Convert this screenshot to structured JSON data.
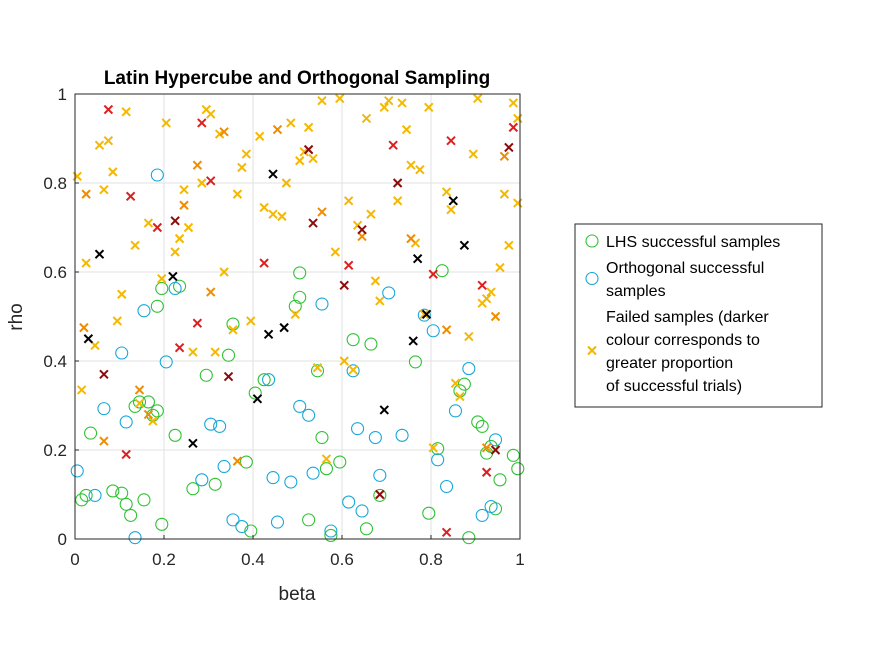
{
  "chart_data": {
    "type": "scatter",
    "title": "Latin Hypercube and Orthogonal Sampling",
    "xlabel": "beta",
    "ylabel": "rho",
    "xlim": [
      0,
      1
    ],
    "ylim": [
      0,
      1
    ],
    "xticks": [
      "0",
      "0.2",
      "0.4",
      "0.6",
      "0.8",
      "1"
    ],
    "yticks": [
      "0",
      "0.2",
      "0.4",
      "0.6",
      "0.8",
      "1"
    ],
    "grid": true,
    "legend_position": "right",
    "series": [
      {
        "name": "LHS successful samples",
        "marker": "circle",
        "color": "#2ec233",
        "points": [
          [
            0.015,
            0.088
          ],
          [
            0.025,
            0.098
          ],
          [
            0.035,
            0.238
          ],
          [
            0.085,
            0.108
          ],
          [
            0.105,
            0.103
          ],
          [
            0.115,
            0.078
          ],
          [
            0.125,
            0.053
          ],
          [
            0.135,
            0.298
          ],
          [
            0.145,
            0.308
          ],
          [
            0.155,
            0.088
          ],
          [
            0.165,
            0.308
          ],
          [
            0.175,
            0.278
          ],
          [
            0.185,
            0.288
          ],
          [
            0.195,
            0.033
          ],
          [
            0.225,
            0.233
          ],
          [
            0.235,
            0.568
          ],
          [
            0.185,
            0.523
          ],
          [
            0.195,
            0.563
          ],
          [
            0.265,
            0.113
          ],
          [
            0.295,
            0.368
          ],
          [
            0.315,
            0.123
          ],
          [
            0.345,
            0.413
          ],
          [
            0.355,
            0.483
          ],
          [
            0.385,
            0.173
          ],
          [
            0.395,
            0.018
          ],
          [
            0.405,
            0.328
          ],
          [
            0.425,
            0.358
          ],
          [
            0.495,
            0.523
          ],
          [
            0.505,
            0.598
          ],
          [
            0.505,
            0.543
          ],
          [
            0.525,
            0.043
          ],
          [
            0.545,
            0.378
          ],
          [
            0.555,
            0.228
          ],
          [
            0.565,
            0.158
          ],
          [
            0.575,
            0.008
          ],
          [
            0.595,
            0.173
          ],
          [
            0.625,
            0.448
          ],
          [
            0.655,
            0.023
          ],
          [
            0.665,
            0.438
          ],
          [
            0.685,
            0.098
          ],
          [
            0.765,
            0.398
          ],
          [
            0.795,
            0.058
          ],
          [
            0.815,
            0.203
          ],
          [
            0.825,
            0.603
          ],
          [
            0.865,
            0.333
          ],
          [
            0.875,
            0.348
          ],
          [
            0.885,
            0.003
          ],
          [
            0.905,
            0.263
          ],
          [
            0.915,
            0.253
          ],
          [
            0.925,
            0.193
          ],
          [
            0.935,
            0.208
          ],
          [
            0.945,
            0.068
          ],
          [
            0.955,
            0.133
          ],
          [
            0.985,
            0.188
          ],
          [
            0.995,
            0.158
          ]
        ]
      },
      {
        "name": "Orthogonal successful samples",
        "marker": "circle",
        "color": "#17a7d9",
        "points": [
          [
            0.005,
            0.153
          ],
          [
            0.045,
            0.098
          ],
          [
            0.065,
            0.293
          ],
          [
            0.105,
            0.418
          ],
          [
            0.115,
            0.263
          ],
          [
            0.135,
            0.003
          ],
          [
            0.155,
            0.513
          ],
          [
            0.185,
            0.818
          ],
          [
            0.205,
            0.398
          ],
          [
            0.225,
            0.563
          ],
          [
            0.285,
            0.133
          ],
          [
            0.305,
            0.258
          ],
          [
            0.325,
            0.253
          ],
          [
            0.335,
            0.163
          ],
          [
            0.355,
            0.043
          ],
          [
            0.375,
            0.028
          ],
          [
            0.435,
            0.358
          ],
          [
            0.445,
            0.138
          ],
          [
            0.455,
            0.038
          ],
          [
            0.485,
            0.128
          ],
          [
            0.505,
            0.298
          ],
          [
            0.525,
            0.278
          ],
          [
            0.535,
            0.148
          ],
          [
            0.555,
            0.528
          ],
          [
            0.575,
            0.018
          ],
          [
            0.615,
            0.083
          ],
          [
            0.625,
            0.378
          ],
          [
            0.635,
            0.248
          ],
          [
            0.645,
            0.063
          ],
          [
            0.675,
            0.228
          ],
          [
            0.685,
            0.143
          ],
          [
            0.705,
            0.553
          ],
          [
            0.735,
            0.233
          ],
          [
            0.785,
            0.503
          ],
          [
            0.805,
            0.468
          ],
          [
            0.815,
            0.178
          ],
          [
            0.835,
            0.118
          ],
          [
            0.855,
            0.288
          ],
          [
            0.885,
            0.383
          ],
          [
            0.915,
            0.053
          ],
          [
            0.935,
            0.073
          ],
          [
            0.945,
            0.223
          ]
        ]
      },
      {
        "name": "Failed samples (darker colour corresponds to greater proportion of successful trials)",
        "marker": "x",
        "points": [
          [
            0.005,
            0.815,
            "#f5b800"
          ],
          [
            0.015,
            0.335,
            "#f5b800"
          ],
          [
            0.025,
            0.62,
            "#f5b800"
          ],
          [
            0.045,
            0.435,
            "#f5b800"
          ],
          [
            0.055,
            0.885,
            "#f5b800"
          ],
          [
            0.065,
            0.785,
            "#f5b800"
          ],
          [
            0.075,
            0.895,
            "#f5b800"
          ],
          [
            0.085,
            0.825,
            "#f5b800"
          ],
          [
            0.095,
            0.49,
            "#f5b800"
          ],
          [
            0.105,
            0.55,
            "#f5b800"
          ],
          [
            0.115,
            0.96,
            "#f5b800"
          ],
          [
            0.135,
            0.66,
            "#f5b800"
          ],
          [
            0.145,
            0.305,
            "#f5b800"
          ],
          [
            0.165,
            0.71,
            "#f5b800"
          ],
          [
            0.175,
            0.265,
            "#f5b800"
          ],
          [
            0.195,
            0.585,
            "#f5b800"
          ],
          [
            0.205,
            0.935,
            "#f5b800"
          ],
          [
            0.225,
            0.645,
            "#f5b800"
          ],
          [
            0.235,
            0.675,
            "#f5b800"
          ],
          [
            0.245,
            0.785,
            "#f5b800"
          ],
          [
            0.255,
            0.7,
            "#f5b800"
          ],
          [
            0.265,
            0.42,
            "#f5b800"
          ],
          [
            0.285,
            0.8,
            "#f5b800"
          ],
          [
            0.295,
            0.965,
            "#f5b800"
          ],
          [
            0.305,
            0.955,
            "#f5b800"
          ],
          [
            0.315,
            0.42,
            "#f5b800"
          ],
          [
            0.325,
            0.91,
            "#f5b800"
          ],
          [
            0.335,
            0.6,
            "#f5b800"
          ],
          [
            0.355,
            0.47,
            "#f5b800"
          ],
          [
            0.365,
            0.775,
            "#f5b800"
          ],
          [
            0.375,
            0.835,
            "#f5b800"
          ],
          [
            0.385,
            0.865,
            "#f5b800"
          ],
          [
            0.395,
            0.49,
            "#f5b800"
          ],
          [
            0.415,
            0.905,
            "#f5b800"
          ],
          [
            0.425,
            0.745,
            "#f5b800"
          ],
          [
            0.445,
            0.73,
            "#f5b800"
          ],
          [
            0.465,
            0.725,
            "#f5b800"
          ],
          [
            0.475,
            0.8,
            "#f5b800"
          ],
          [
            0.485,
            0.935,
            "#f5b800"
          ],
          [
            0.495,
            0.505,
            "#f5b800"
          ],
          [
            0.505,
            0.85,
            "#f5b800"
          ],
          [
            0.515,
            0.87,
            "#f5b800"
          ],
          [
            0.525,
            0.925,
            "#f5b800"
          ],
          [
            0.535,
            0.855,
            "#f5b800"
          ],
          [
            0.545,
            0.385,
            "#f5b800"
          ],
          [
            0.555,
            0.985,
            "#f5b800"
          ],
          [
            0.565,
            0.18,
            "#f5b800"
          ],
          [
            0.585,
            0.645,
            "#f5b800"
          ],
          [
            0.595,
            0.99,
            "#f5b800"
          ],
          [
            0.605,
            0.4,
            "#f5b800"
          ],
          [
            0.615,
            0.76,
            "#f5b800"
          ],
          [
            0.625,
            0.38,
            "#f5b800"
          ],
          [
            0.635,
            0.705,
            "#f5b800"
          ],
          [
            0.655,
            0.945,
            "#f5b800"
          ],
          [
            0.665,
            0.73,
            "#f5b800"
          ],
          [
            0.675,
            0.58,
            "#f5b800"
          ],
          [
            0.685,
            0.535,
            "#f5b800"
          ],
          [
            0.695,
            0.97,
            "#f5b800"
          ],
          [
            0.705,
            0.985,
            "#f5b800"
          ],
          [
            0.725,
            0.76,
            "#f5b800"
          ],
          [
            0.735,
            0.98,
            "#f5b800"
          ],
          [
            0.745,
            0.92,
            "#f5b800"
          ],
          [
            0.755,
            0.84,
            "#f5b800"
          ],
          [
            0.765,
            0.665,
            "#f5b800"
          ],
          [
            0.775,
            0.83,
            "#f5b800"
          ],
          [
            0.785,
            0.505,
            "#f5b800"
          ],
          [
            0.795,
            0.97,
            "#f5b800"
          ],
          [
            0.805,
            0.205,
            "#f5b800"
          ],
          [
            0.835,
            0.78,
            "#f5b800"
          ],
          [
            0.845,
            0.74,
            "#f5b800"
          ],
          [
            0.855,
            0.35,
            "#f5b800"
          ],
          [
            0.865,
            0.32,
            "#f5b800"
          ],
          [
            0.885,
            0.455,
            "#f5b800"
          ],
          [
            0.895,
            0.865,
            "#f5b800"
          ],
          [
            0.905,
            0.99,
            "#f5b800"
          ],
          [
            0.915,
            0.53,
            "#f5b800"
          ],
          [
            0.925,
            0.54,
            "#f5b800"
          ],
          [
            0.935,
            0.555,
            "#f5b800"
          ],
          [
            0.955,
            0.61,
            "#f5b800"
          ],
          [
            0.965,
            0.775,
            "#f5b800"
          ],
          [
            0.975,
            0.66,
            "#f5b800"
          ],
          [
            0.985,
            0.98,
            "#f5b800"
          ],
          [
            0.995,
            0.755,
            "#f5b800"
          ],
          [
            0.995,
            0.945,
            "#f5b800"
          ],
          [
            0.02,
            0.475,
            "#f08c00"
          ],
          [
            0.025,
            0.775,
            "#f08c00"
          ],
          [
            0.065,
            0.22,
            "#f08c00"
          ],
          [
            0.145,
            0.335,
            "#f08c00"
          ],
          [
            0.165,
            0.28,
            "#f08c00"
          ],
          [
            0.245,
            0.75,
            "#f08c00"
          ],
          [
            0.275,
            0.84,
            "#f08c00"
          ],
          [
            0.305,
            0.555,
            "#f08c00"
          ],
          [
            0.335,
            0.915,
            "#f08c00"
          ],
          [
            0.365,
            0.175,
            "#f08c00"
          ],
          [
            0.455,
            0.92,
            "#f08c00"
          ],
          [
            0.555,
            0.735,
            "#f08c00"
          ],
          [
            0.645,
            0.68,
            "#f08c00"
          ],
          [
            0.755,
            0.675,
            "#f08c00"
          ],
          [
            0.835,
            0.47,
            "#f08c00"
          ],
          [
            0.925,
            0.205,
            "#f08c00"
          ],
          [
            0.945,
            0.5,
            "#f08c00"
          ],
          [
            0.965,
            0.86,
            "#f08c00"
          ],
          [
            0.075,
            0.965,
            "#dd1f1f"
          ],
          [
            0.115,
            0.19,
            "#dd1f1f"
          ],
          [
            0.125,
            0.77,
            "#dd1f1f"
          ],
          [
            0.185,
            0.7,
            "#dd1f1f"
          ],
          [
            0.235,
            0.43,
            "#dd1f1f"
          ],
          [
            0.275,
            0.485,
            "#dd1f1f"
          ],
          [
            0.285,
            0.935,
            "#dd1f1f"
          ],
          [
            0.305,
            0.805,
            "#dd1f1f"
          ],
          [
            0.425,
            0.62,
            "#dd1f1f"
          ],
          [
            0.615,
            0.615,
            "#dd1f1f"
          ],
          [
            0.715,
            0.885,
            "#dd1f1f"
          ],
          [
            0.805,
            0.595,
            "#dd1f1f"
          ],
          [
            0.835,
            0.015,
            "#dd1f1f"
          ],
          [
            0.845,
            0.895,
            "#dd1f1f"
          ],
          [
            0.915,
            0.57,
            "#dd1f1f"
          ],
          [
            0.925,
            0.15,
            "#dd1f1f"
          ],
          [
            0.985,
            0.925,
            "#dd1f1f"
          ],
          [
            0.065,
            0.37,
            "#8c0b0b"
          ],
          [
            0.225,
            0.715,
            "#8c0b0b"
          ],
          [
            0.345,
            0.365,
            "#8c0b0b"
          ],
          [
            0.525,
            0.875,
            "#8c0b0b"
          ],
          [
            0.535,
            0.71,
            "#8c0b0b"
          ],
          [
            0.605,
            0.57,
            "#8c0b0b"
          ],
          [
            0.645,
            0.695,
            "#8c0b0b"
          ],
          [
            0.685,
            0.1,
            "#8c0b0b"
          ],
          [
            0.725,
            0.8,
            "#8c0b0b"
          ],
          [
            0.945,
            0.2,
            "#8c0b0b"
          ],
          [
            0.975,
            0.88,
            "#8c0b0b"
          ],
          [
            0.03,
            0.45,
            "#000000"
          ],
          [
            0.055,
            0.64,
            "#000000"
          ],
          [
            0.22,
            0.59,
            "#000000"
          ],
          [
            0.265,
            0.215,
            "#000000"
          ],
          [
            0.41,
            0.315,
            "#000000"
          ],
          [
            0.435,
            0.46,
            "#000000"
          ],
          [
            0.445,
            0.82,
            "#000000"
          ],
          [
            0.47,
            0.475,
            "#000000"
          ],
          [
            0.695,
            0.29,
            "#000000"
          ],
          [
            0.76,
            0.445,
            "#000000"
          ],
          [
            0.77,
            0.63,
            "#000000"
          ],
          [
            0.79,
            0.505,
            "#000000"
          ],
          [
            0.85,
            0.76,
            "#000000"
          ],
          [
            0.875,
            0.66,
            "#000000"
          ]
        ]
      }
    ]
  },
  "legend": {
    "items": [
      {
        "lines": [
          "LHS successful samples"
        ],
        "marker": "circle",
        "color": "#2ec233"
      },
      {
        "lines": [
          "Orthogonal successful",
          "samples"
        ],
        "marker": "circle",
        "color": "#17a7d9"
      },
      {
        "lines": [
          "Failed samples (darker",
          "colour corresponds to",
          "greater proportion",
          "of successful trials)"
        ],
        "marker": "x",
        "color": "#f5b800"
      }
    ]
  }
}
